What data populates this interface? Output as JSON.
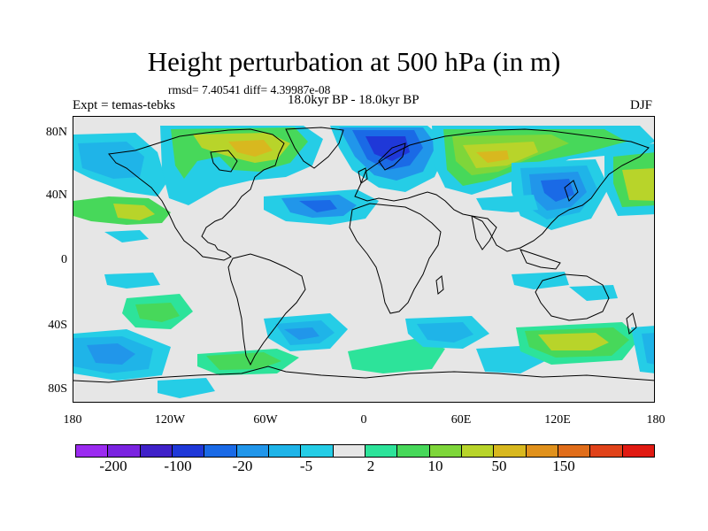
{
  "title": "Height perturbation at 500 hPa (in m)",
  "stats": "rmsd= 7.40541 diff= 4.39987e-08",
  "experiment": "Expt = temas-tebks",
  "period": "18.0kyr BP - 18.0kyr BP",
  "season": "DJF",
  "lat_ticks": [
    "80N",
    "40N",
    "0",
    "40S",
    "80S"
  ],
  "lon_ticks": [
    "180",
    "120W",
    "60W",
    "0",
    "60E",
    "120E",
    "180"
  ],
  "colorbar": {
    "colors": [
      "#9b2bf0",
      "#7a23e0",
      "#3f21c8",
      "#1f38d8",
      "#1a6ae6",
      "#2196ea",
      "#1fb4e8",
      "#25cde6",
      "#e6e6e6",
      "#2de39a",
      "#47d85a",
      "#7ed63a",
      "#b8d42a",
      "#d8b81f",
      "#e0911c",
      "#e06d1a",
      "#e0431a",
      "#e01a12"
    ],
    "labels": [
      "-200",
      "-100",
      "-20",
      "-5",
      "2",
      "10",
      "50",
      "150"
    ]
  },
  "field_colors": {
    "c1": "#25cde6",
    "c2": "#1fb4e8",
    "c3": "#2196ea",
    "c4": "#1a6ae6",
    "c5": "#1f38d8",
    "g1": "#2de39a",
    "g2": "#47d85a",
    "g3": "#7ed63a",
    "g4": "#b8d42a",
    "g5": "#d8b81f"
  }
}
